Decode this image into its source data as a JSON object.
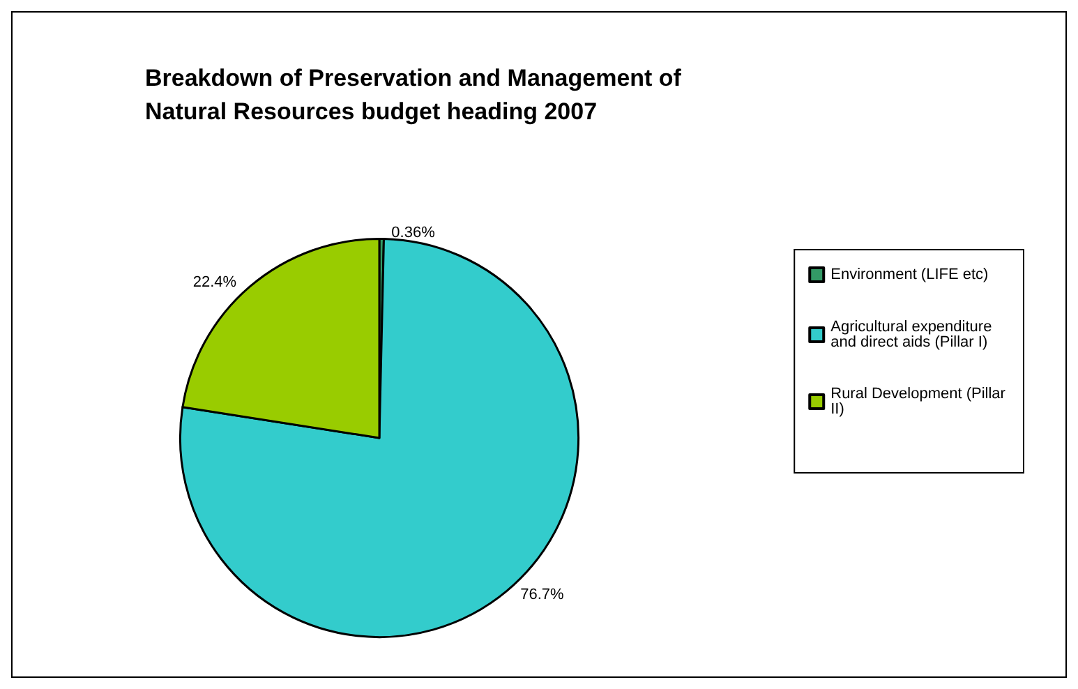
{
  "chart_data": {
    "type": "pie",
    "title": "Breakdown of Preservation and Management of Natural Resources budget heading 2007",
    "categories": [
      "Environment (LIFE etc)",
      "Agricultural expenditure and direct aids (Pillar I)",
      "Rural Development (Pillar II)"
    ],
    "values": [
      0.36,
      76.7,
      22.4
    ],
    "colors": [
      "#339966",
      "#33cccc",
      "#99cc00"
    ],
    "value_labels": [
      "0.36%",
      "76.7%",
      "22.4%"
    ],
    "legend": "right"
  }
}
